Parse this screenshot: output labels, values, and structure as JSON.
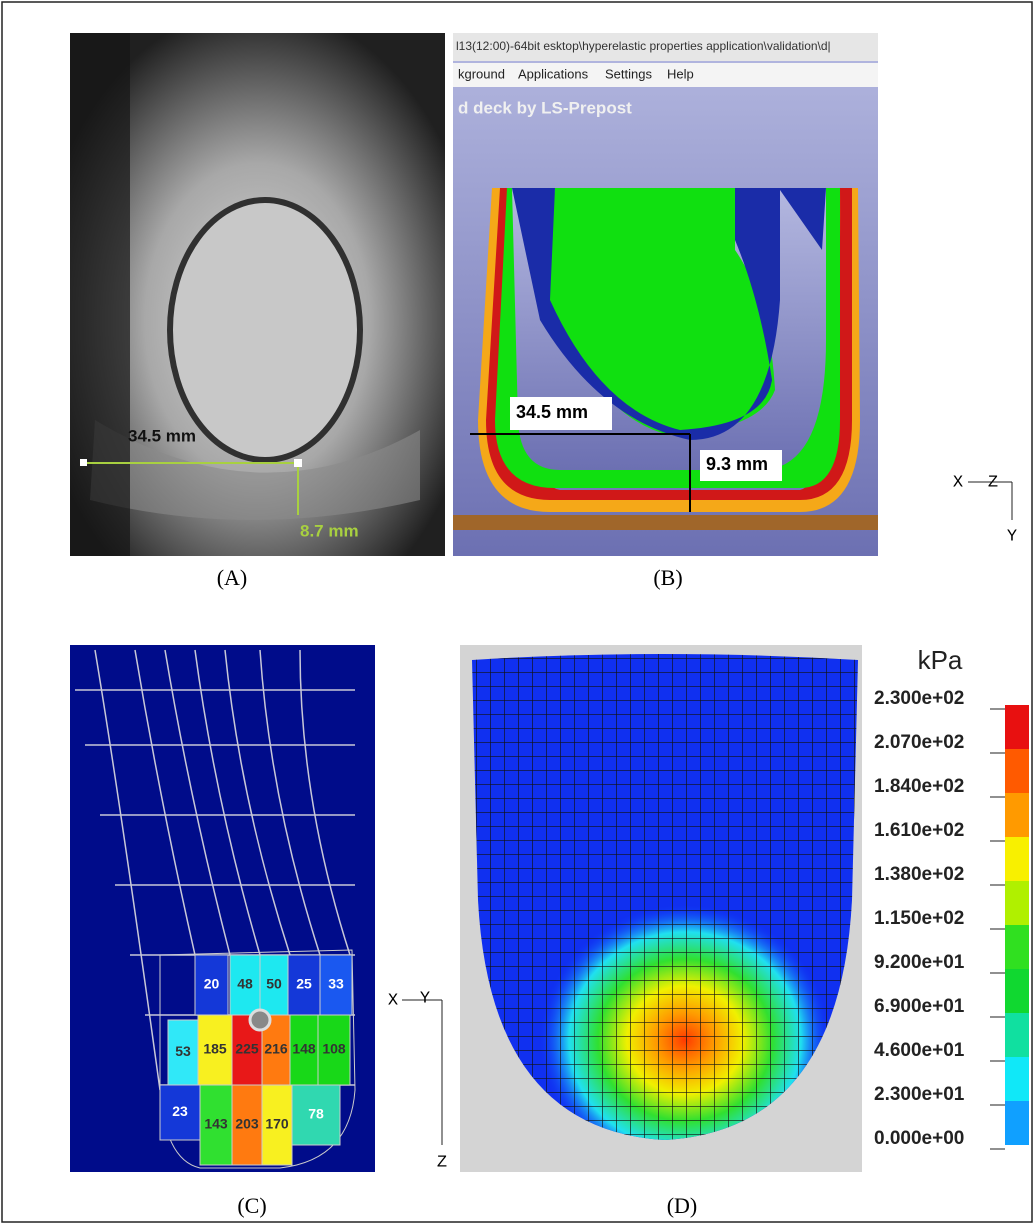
{
  "panel_a": {
    "label": "(A)",
    "width_label": "34.5 mm",
    "thickness_label": "8.7 mm"
  },
  "panel_b": {
    "label": "(B)",
    "title_bar": "l13(12:00)-64bit esktop\\hyperelastic properties application\\validation\\d|",
    "menu": [
      "kground",
      "Applications",
      "Settings",
      "Help"
    ],
    "caption": "d deck by LS-Prepost",
    "width_label": "34.5 mm",
    "thickness_label": "9.3 mm",
    "axes": [
      "X",
      "Z",
      "Y"
    ]
  },
  "panel_c": {
    "label": "(C)",
    "cells": [
      20,
      48,
      50,
      25,
      33,
      53,
      185,
      225,
      216,
      148,
      108,
      23,
      143,
      203,
      170,
      78
    ],
    "axes": [
      "X",
      "Y",
      "Z"
    ]
  },
  "panel_d": {
    "label": "(D)",
    "unit": "kPa",
    "colorbar": [
      "2.300e+02",
      "2.070e+02",
      "1.840e+02",
      "1.610e+02",
      "1.380e+02",
      "1.150e+02",
      "9.200e+01",
      "6.900e+01",
      "4.600e+01",
      "2.300e+01",
      "0.000e+00"
    ]
  }
}
